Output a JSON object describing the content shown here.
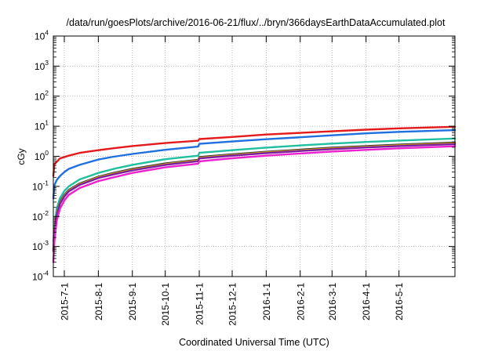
{
  "chart_data": {
    "type": "line",
    "title": "/data/run/goesPlots/archive/2016-06-21/flux/../bryn/366daysEarthDataAccumulated.plot",
    "xlabel": "Coordinated Universal Time (UTC)",
    "ylabel": "cGy",
    "yscale": "log",
    "ylim": [
      0.0001,
      10000
    ],
    "xlim": [
      "2015-06-21",
      "2016-06-21"
    ],
    "grid": true,
    "y_ticks": [
      {
        "value": 0.0001,
        "base": "10",
        "exp": "-4"
      },
      {
        "value": 0.001,
        "base": "10",
        "exp": "-3"
      },
      {
        "value": 0.01,
        "base": "10",
        "exp": "-2"
      },
      {
        "value": 0.1,
        "base": "10",
        "exp": "-1"
      },
      {
        "value": 1,
        "base": "10",
        "exp": "0"
      },
      {
        "value": 10,
        "base": "10",
        "exp": "1"
      },
      {
        "value": 100,
        "base": "10",
        "exp": "2"
      },
      {
        "value": 1000,
        "base": "10",
        "exp": "3"
      },
      {
        "value": 10000,
        "base": "10",
        "exp": "4"
      }
    ],
    "x_ticks": [
      {
        "date": "2015-07-01",
        "label": "2015-7-1"
      },
      {
        "date": "2015-08-01",
        "label": "2015-8-1"
      },
      {
        "date": "2015-09-01",
        "label": "2015-9-1"
      },
      {
        "date": "2015-10-01",
        "label": "2015-10-1"
      },
      {
        "date": "2015-11-01",
        "label": "2015-11-1"
      },
      {
        "date": "2015-12-01",
        "label": "2015-12-1"
      },
      {
        "date": "2016-01-01",
        "label": "2016-1-1"
      },
      {
        "date": "2016-02-01",
        "label": "2016-2-1"
      },
      {
        "date": "2016-03-01",
        "label": "2016-3-1"
      },
      {
        "date": "2016-04-01",
        "label": "2016-4-1"
      },
      {
        "date": "2016-05-01",
        "label": "2016-5-1"
      }
    ],
    "series": [
      {
        "color": "#e41a1c",
        "points": [
          [
            "2015-06-21",
            0.22
          ],
          [
            "2015-06-22",
            0.55
          ],
          [
            "2015-06-24",
            0.65
          ],
          [
            "2015-06-27",
            0.85
          ],
          [
            "2015-07-05",
            1.05
          ],
          [
            "2015-07-15",
            1.3
          ],
          [
            "2015-08-01",
            1.6
          ],
          [
            "2015-08-15",
            1.85
          ],
          [
            "2015-09-01",
            2.2
          ],
          [
            "2015-10-01",
            2.75
          ],
          [
            "2015-10-31",
            3.3
          ],
          [
            "2015-11-01",
            3.75
          ],
          [
            "2015-12-01",
            4.4
          ],
          [
            "2016-01-01",
            5.3
          ],
          [
            "2016-02-01",
            6.0
          ],
          [
            "2016-03-01",
            6.8
          ],
          [
            "2016-04-01",
            7.7
          ],
          [
            "2016-05-01",
            8.5
          ],
          [
            "2016-06-21",
            9.6
          ]
        ]
      },
      {
        "color": "#1f6fdf",
        "points": [
          [
            "2015-06-21",
            0.04
          ],
          [
            "2015-06-22",
            0.11
          ],
          [
            "2015-06-24",
            0.16
          ],
          [
            "2015-06-27",
            0.22
          ],
          [
            "2015-07-01",
            0.3
          ],
          [
            "2015-07-05",
            0.38
          ],
          [
            "2015-07-15",
            0.52
          ],
          [
            "2015-08-01",
            0.78
          ],
          [
            "2015-08-15",
            0.97
          ],
          [
            "2015-09-01",
            1.2
          ],
          [
            "2015-10-01",
            1.65
          ],
          [
            "2015-10-31",
            2.1
          ],
          [
            "2015-11-01",
            2.6
          ],
          [
            "2015-12-01",
            3.1
          ],
          [
            "2016-01-01",
            3.7
          ],
          [
            "2016-02-01",
            4.3
          ],
          [
            "2016-03-01",
            5.0
          ],
          [
            "2016-04-01",
            5.8
          ],
          [
            "2016-05-01",
            6.5
          ],
          [
            "2016-06-21",
            7.4
          ]
        ]
      },
      {
        "color": "#1fbfa0",
        "points": [
          [
            "2015-06-21",
            0.0015
          ],
          [
            "2015-06-22",
            0.004
          ],
          [
            "2015-06-24",
            0.018
          ],
          [
            "2015-06-27",
            0.04
          ],
          [
            "2015-07-01",
            0.07
          ],
          [
            "2015-07-05",
            0.1
          ],
          [
            "2015-07-15",
            0.17
          ],
          [
            "2015-08-01",
            0.28
          ],
          [
            "2015-08-15",
            0.38
          ],
          [
            "2015-09-01",
            0.52
          ],
          [
            "2015-10-01",
            0.8
          ],
          [
            "2015-10-31",
            1.05
          ],
          [
            "2015-11-01",
            1.3
          ],
          [
            "2015-12-01",
            1.6
          ],
          [
            "2016-01-01",
            1.95
          ],
          [
            "2016-02-01",
            2.3
          ],
          [
            "2016-03-01",
            2.65
          ],
          [
            "2016-04-01",
            3.0
          ],
          [
            "2016-05-01",
            3.35
          ],
          [
            "2016-06-21",
            3.9
          ]
        ]
      },
      {
        "color": "#2d2d3a",
        "points": [
          [
            "2015-06-21",
            0.0008
          ],
          [
            "2015-06-22",
            0.003
          ],
          [
            "2015-06-24",
            0.012
          ],
          [
            "2015-06-27",
            0.03
          ],
          [
            "2015-07-01",
            0.052
          ],
          [
            "2015-07-05",
            0.076
          ],
          [
            "2015-07-15",
            0.125
          ],
          [
            "2015-08-01",
            0.21
          ],
          [
            "2015-08-15",
            0.28
          ],
          [
            "2015-09-01",
            0.38
          ],
          [
            "2015-10-01",
            0.58
          ],
          [
            "2015-10-31",
            0.77
          ],
          [
            "2015-11-01",
            0.95
          ],
          [
            "2015-12-01",
            1.17
          ],
          [
            "2016-01-01",
            1.42
          ],
          [
            "2016-02-01",
            1.67
          ],
          [
            "2016-03-01",
            1.93
          ],
          [
            "2016-04-01",
            2.2
          ],
          [
            "2016-05-01",
            2.45
          ],
          [
            "2016-06-21",
            2.85
          ]
        ]
      },
      {
        "color": "#d4a017",
        "points": [
          [
            "2015-06-21",
            0.0008
          ],
          [
            "2015-06-22",
            0.003
          ],
          [
            "2015-06-24",
            0.011
          ],
          [
            "2015-06-27",
            0.028
          ],
          [
            "2015-07-01",
            0.049
          ],
          [
            "2015-07-05",
            0.072
          ],
          [
            "2015-07-15",
            0.118
          ],
          [
            "2015-08-01",
            0.2
          ],
          [
            "2015-08-15",
            0.265
          ],
          [
            "2015-09-01",
            0.36
          ],
          [
            "2015-10-01",
            0.55
          ],
          [
            "2015-10-31",
            0.73
          ],
          [
            "2015-11-01",
            0.9
          ],
          [
            "2015-12-01",
            1.11
          ],
          [
            "2016-01-01",
            1.35
          ],
          [
            "2016-02-01",
            1.59
          ],
          [
            "2016-03-01",
            1.84
          ],
          [
            "2016-04-01",
            2.08
          ],
          [
            "2016-05-01",
            2.33
          ],
          [
            "2016-06-21",
            2.7
          ]
        ]
      },
      {
        "color": "#7a1fa2",
        "points": [
          [
            "2015-06-21",
            0.0007
          ],
          [
            "2015-06-22",
            0.0028
          ],
          [
            "2015-06-24",
            0.01
          ],
          [
            "2015-06-27",
            0.026
          ],
          [
            "2015-07-01",
            0.046
          ],
          [
            "2015-07-05",
            0.068
          ],
          [
            "2015-07-15",
            0.112
          ],
          [
            "2015-08-01",
            0.19
          ],
          [
            "2015-08-15",
            0.25
          ],
          [
            "2015-09-01",
            0.34
          ],
          [
            "2015-10-01",
            0.52
          ],
          [
            "2015-10-31",
            0.69
          ],
          [
            "2015-11-01",
            0.85
          ],
          [
            "2015-12-01",
            1.05
          ],
          [
            "2016-01-01",
            1.28
          ],
          [
            "2016-02-01",
            1.5
          ],
          [
            "2016-03-01",
            1.74
          ],
          [
            "2016-04-01",
            1.97
          ],
          [
            "2016-05-01",
            2.2
          ],
          [
            "2016-06-21",
            2.55
          ]
        ]
      },
      {
        "color": "#ee22cc",
        "points": [
          [
            "2015-06-21",
            0.0003
          ],
          [
            "2015-06-22",
            0.0015
          ],
          [
            "2015-06-24",
            0.007
          ],
          [
            "2015-06-27",
            0.018
          ],
          [
            "2015-07-01",
            0.034
          ],
          [
            "2015-07-05",
            0.052
          ],
          [
            "2015-07-15",
            0.088
          ],
          [
            "2015-08-01",
            0.15
          ],
          [
            "2015-08-15",
            0.2
          ],
          [
            "2015-09-01",
            0.28
          ],
          [
            "2015-10-01",
            0.43
          ],
          [
            "2015-10-31",
            0.57
          ],
          [
            "2015-11-01",
            0.68
          ],
          [
            "2015-12-01",
            0.86
          ],
          [
            "2016-01-01",
            1.05
          ],
          [
            "2016-02-01",
            1.24
          ],
          [
            "2016-03-01",
            1.44
          ],
          [
            "2016-04-01",
            1.64
          ],
          [
            "2016-05-01",
            1.84
          ],
          [
            "2016-06-21",
            2.15
          ]
        ]
      }
    ]
  }
}
